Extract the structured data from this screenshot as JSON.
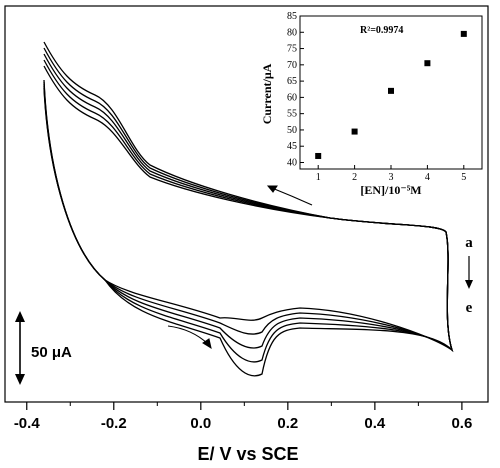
{
  "chart_data": [
    {
      "type": "line",
      "xlabel": "E/ V vs SCE",
      "ylabel": "",
      "xlim": [
        -0.45,
        0.66
      ],
      "x_ticks": [
        "-0.4",
        "-0.2",
        "0.0",
        "0.2",
        "0.4",
        "0.6"
      ],
      "x_tick_values": [
        -0.4,
        -0.2,
        0.0,
        0.2,
        0.4,
        0.6
      ],
      "series_count": 5,
      "series_colors": [
        "#000000"
      ],
      "scale_bar_label": "50 μA",
      "trace_labels": {
        "first": "a",
        "last": "e"
      },
      "cathodic_peak_potential": 0.15,
      "anodic_shoulder_potential": -0.27,
      "grid": false
    },
    {
      "type": "scatter",
      "xlabel": "[EN]/10⁻⁵M",
      "ylabel": "Current/μA",
      "annotation": "R²=0.9974",
      "xlim": [
        0.5,
        5.5
      ],
      "ylim": [
        38,
        85
      ],
      "x_ticks": [
        "1",
        "2",
        "3",
        "4",
        "5"
      ],
      "y_ticks": [
        "40",
        "45",
        "50",
        "55",
        "60",
        "65",
        "70",
        "75",
        "80",
        "85"
      ],
      "points": [
        {
          "x": 1,
          "y": 42.0
        },
        {
          "x": 2,
          "y": 49.5
        },
        {
          "x": 3,
          "y": 62.0
        },
        {
          "x": 4,
          "y": 70.5
        },
        {
          "x": 5,
          "y": 79.5
        }
      ],
      "marker": "square",
      "grid": false
    }
  ]
}
